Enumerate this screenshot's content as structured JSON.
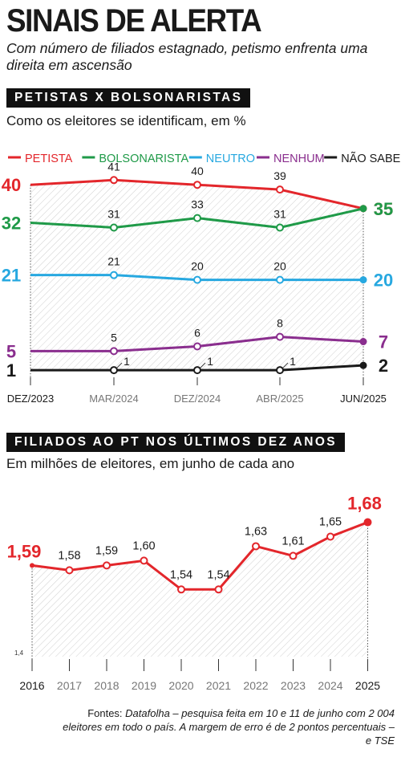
{
  "headline": "SINAIS DE ALERTA",
  "subtitle": "Com número de filiados estagnado, petismo enfrenta uma direita em ascensão",
  "source_label": "Fontes:",
  "source_text": "Datafolha – pesquisa feita em 10 e 11 de junho com 2 004 eleitores em todo o país. A margem de erro é de 2 pontos percentuais – e TSE",
  "chart_data": [
    {
      "type": "line",
      "title": "PETISTAS X BOLSONARISTAS",
      "subtitle": "Como os eleitores se identificam, em %",
      "categories": [
        "DEZ/2023",
        "MAR/2024",
        "DEZ/2024",
        "ABR/2025",
        "JUN/2025"
      ],
      "legend_position": "top",
      "series": [
        {
          "name": "PETISTA",
          "color": "#e3262b",
          "values": [
            40,
            41,
            40,
            39,
            35
          ]
        },
        {
          "name": "BOLSONARISTA",
          "color": "#1f9a48",
          "values": [
            32,
            31,
            33,
            31,
            35
          ]
        },
        {
          "name": "NEUTRO",
          "color": "#27a8e0",
          "values": [
            21,
            21,
            20,
            20,
            20
          ]
        },
        {
          "name": "NENHUM",
          "color": "#8a2e8e",
          "values": [
            5,
            5,
            6,
            8,
            7
          ]
        },
        {
          "name": "NÃO SABE",
          "color": "#1a1a1a",
          "values": [
            1,
            1,
            1,
            1,
            2
          ]
        }
      ]
    },
    {
      "type": "line",
      "title": "FILIADOS AO PT NOS ÚLTIMOS DEZ ANOS",
      "subtitle": "Em milhões de eleitores, em junho de cada ano",
      "x": [
        "2016",
        "2017",
        "2018",
        "2019",
        "2020",
        "2021",
        "2022",
        "2023",
        "2024",
        "2025"
      ],
      "series": [
        {
          "color": "#e3262b",
          "values": [
            1.59,
            1.58,
            1.59,
            1.6,
            1.54,
            1.54,
            1.63,
            1.61,
            1.65,
            1.68
          ],
          "labels": [
            "1,59",
            "1,58",
            "1,59",
            "1,60",
            "1,54",
            "1,54",
            "1,63",
            "1,61",
            "1,65",
            "1,68"
          ]
        }
      ],
      "y_axis_label": "1,4",
      "ylim": [
        1.4,
        1.7
      ]
    }
  ]
}
